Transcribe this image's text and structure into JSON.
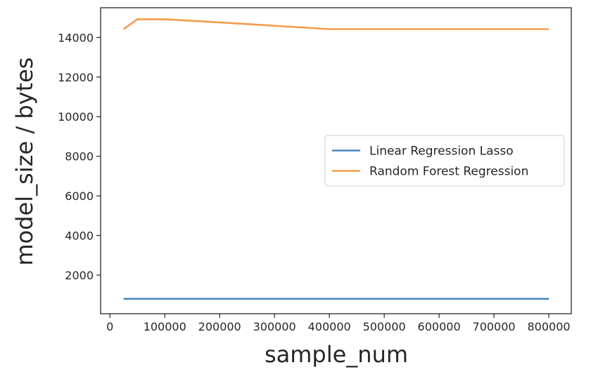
{
  "chart_data": {
    "type": "line",
    "title": "",
    "xlabel": "sample_num",
    "ylabel": "model_size / bytes",
    "xlim": [
      -17000,
      841000
    ],
    "ylim": [
      50,
      15500
    ],
    "xticks": [
      0,
      100000,
      200000,
      300000,
      400000,
      500000,
      600000,
      700000,
      800000
    ],
    "xtick_labels": [
      "0",
      "100000",
      "200000",
      "300000",
      "400000",
      "500000",
      "600000",
      "700000",
      "800000"
    ],
    "yticks": [
      2000,
      4000,
      6000,
      8000,
      10000,
      12000,
      14000
    ],
    "ytick_labels": [
      "2000",
      "4000",
      "6000",
      "8000",
      "10000",
      "12000",
      "14000"
    ],
    "grid": false,
    "legend_position": "center-right",
    "series": [
      {
        "name": "Linear Regression Lasso",
        "color": "#4c86c0",
        "x": [
          25000,
          50000,
          100000,
          200000,
          400000,
          800000
        ],
        "y": [
          800,
          800,
          800,
          800,
          800,
          800
        ]
      },
      {
        "name": "Random Forest Regression",
        "color": "#f39c4b",
        "x": [
          25000,
          50000,
          100000,
          200000,
          400000,
          800000
        ],
        "y": [
          14420,
          14920,
          14920,
          14760,
          14420,
          14420
        ]
      }
    ]
  }
}
